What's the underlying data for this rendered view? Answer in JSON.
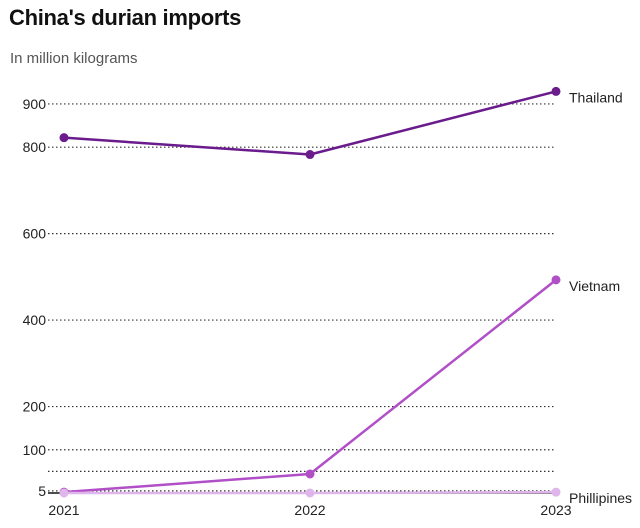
{
  "chart_data": {
    "type": "line",
    "title": "China's durian imports",
    "subtitle": "In million kilograms",
    "x": [
      "2021",
      "2022",
      "2023"
    ],
    "y_ticks": [
      5,
      100,
      200,
      400,
      600,
      800,
      900
    ],
    "ylim": [
      0,
      960
    ],
    "extra_gridlines": [
      50
    ],
    "series": [
      {
        "name": "Thailand",
        "values": [
          822,
          783,
          929
        ],
        "color": "#6a1b8c"
      },
      {
        "name": "Vietnam",
        "values": [
          2,
          44,
          493
        ],
        "color": "#b14fc7"
      },
      {
        "name": "Phillipines",
        "values": [
          0,
          0,
          2
        ],
        "color": "#dfb6ec"
      }
    ],
    "xlabel": "",
    "ylabel": ""
  }
}
